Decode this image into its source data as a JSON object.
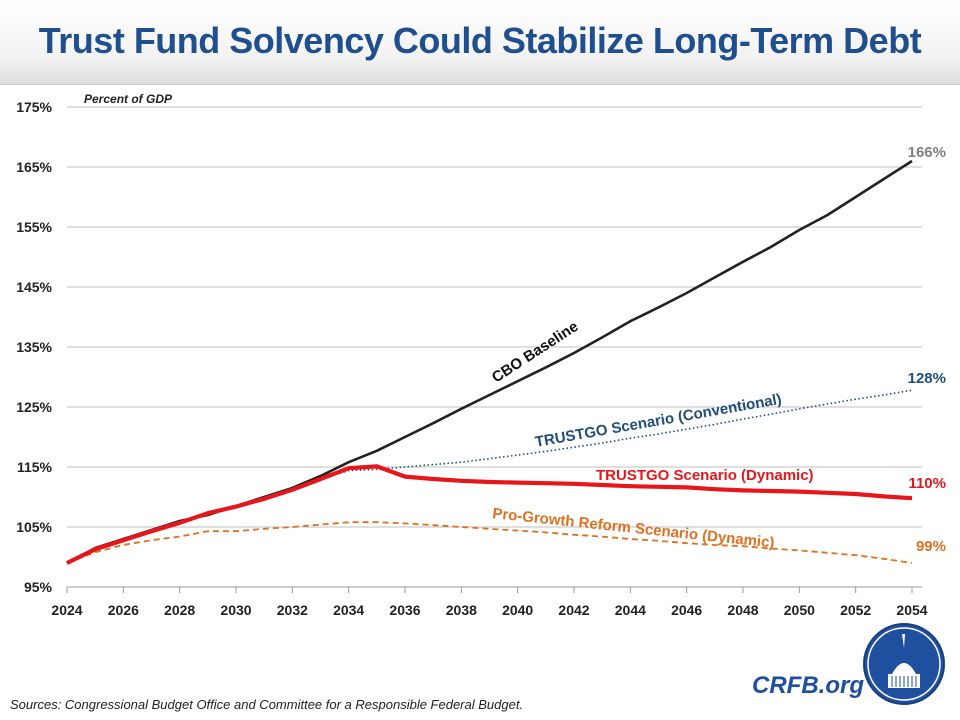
{
  "title": "Trust Fund Solvency Could Stabilize Long-Term Debt",
  "sources": "Sources: Congressional Budget Office and Committee for a Responsible Federal Budget.",
  "brand": "CRFB.org",
  "chart_data": {
    "type": "line",
    "title": "Trust Fund Solvency Could Stabilize Long-Term Debt",
    "ylabel": "Percent of GDP",
    "xlabel": "",
    "xlim": [
      2024,
      2054
    ],
    "ylim": [
      95,
      175
    ],
    "grid": true,
    "x_ticks": [
      "2024",
      "2026",
      "2028",
      "2030",
      "2032",
      "2034",
      "2036",
      "2038",
      "2040",
      "2042",
      "2044",
      "2046",
      "2048",
      "2050",
      "2052",
      "2054"
    ],
    "y_ticks": [
      "95%",
      "105%",
      "115%",
      "125%",
      "135%",
      "145%",
      "155%",
      "165%",
      "175%"
    ],
    "x": [
      2024,
      2025,
      2026,
      2027,
      2028,
      2029,
      2030,
      2031,
      2032,
      2033,
      2034,
      2035,
      2036,
      2037,
      2038,
      2039,
      2040,
      2041,
      2042,
      2043,
      2044,
      2045,
      2046,
      2047,
      2048,
      2049,
      2050,
      2051,
      2052,
      2053,
      2054
    ],
    "series": [
      {
        "name": "CBO Baseline",
        "color": "#222222",
        "style": "solid",
        "end_label": "166%",
        "end_label_color": "#7f7f7f",
        "values": [
          99,
          101.5,
          103,
          104.5,
          106,
          107,
          108.5,
          110,
          111.5,
          113.5,
          115.8,
          117.7,
          120,
          122.3,
          124.7,
          127,
          129.3,
          131.6,
          134,
          136.6,
          139.3,
          141.6,
          144,
          146.6,
          149.2,
          151.7,
          154.5,
          157,
          160,
          163,
          166
        ]
      },
      {
        "name": "TRUSTGO Scenario (Conventional)",
        "color": "#1f4e79",
        "style": "dotted",
        "end_label": "128%",
        "end_label_color": "#1f4e79",
        "values": [
          99,
          101.3,
          102.8,
          104.3,
          105.7,
          107.3,
          108.4,
          109.7,
          111.2,
          113,
          114.4,
          114.6,
          115,
          115.4,
          115.8,
          116.4,
          117,
          117.6,
          118.3,
          119,
          119.8,
          120.5,
          121.3,
          122.1,
          123,
          123.8,
          124.7,
          125.5,
          126.3,
          127,
          127.8
        ]
      },
      {
        "name": "TRUSTGO Scenario (Dynamic)",
        "color": "#e8161b",
        "style": "thick",
        "end_label": "110%",
        "end_label_color": "#e8161b",
        "values": [
          99,
          101.3,
          102.8,
          104.3,
          105.7,
          107.3,
          108.4,
          109.7,
          111.2,
          113,
          114.8,
          115.1,
          113.4,
          113,
          112.7,
          112.5,
          112.4,
          112.3,
          112.2,
          112,
          111.8,
          111.7,
          111.6,
          111.3,
          111.1,
          111,
          110.9,
          110.7,
          110.5,
          110.1,
          109.8
        ]
      },
      {
        "name": "Pro-Growth Reform Scenario (Dynamic)",
        "color": "#e07020",
        "style": "dashed",
        "end_label": "99%",
        "end_label_color": "#e07020",
        "values": [
          99,
          100.8,
          102,
          102.8,
          103.4,
          104.3,
          104.3,
          104.7,
          105,
          105.4,
          105.8,
          105.8,
          105.6,
          105.3,
          105,
          104.7,
          104.4,
          104.1,
          103.7,
          103.4,
          103,
          102.7,
          102.3,
          102,
          101.8,
          101.4,
          101.1,
          100.7,
          100.3,
          99.7,
          99
        ]
      }
    ]
  }
}
